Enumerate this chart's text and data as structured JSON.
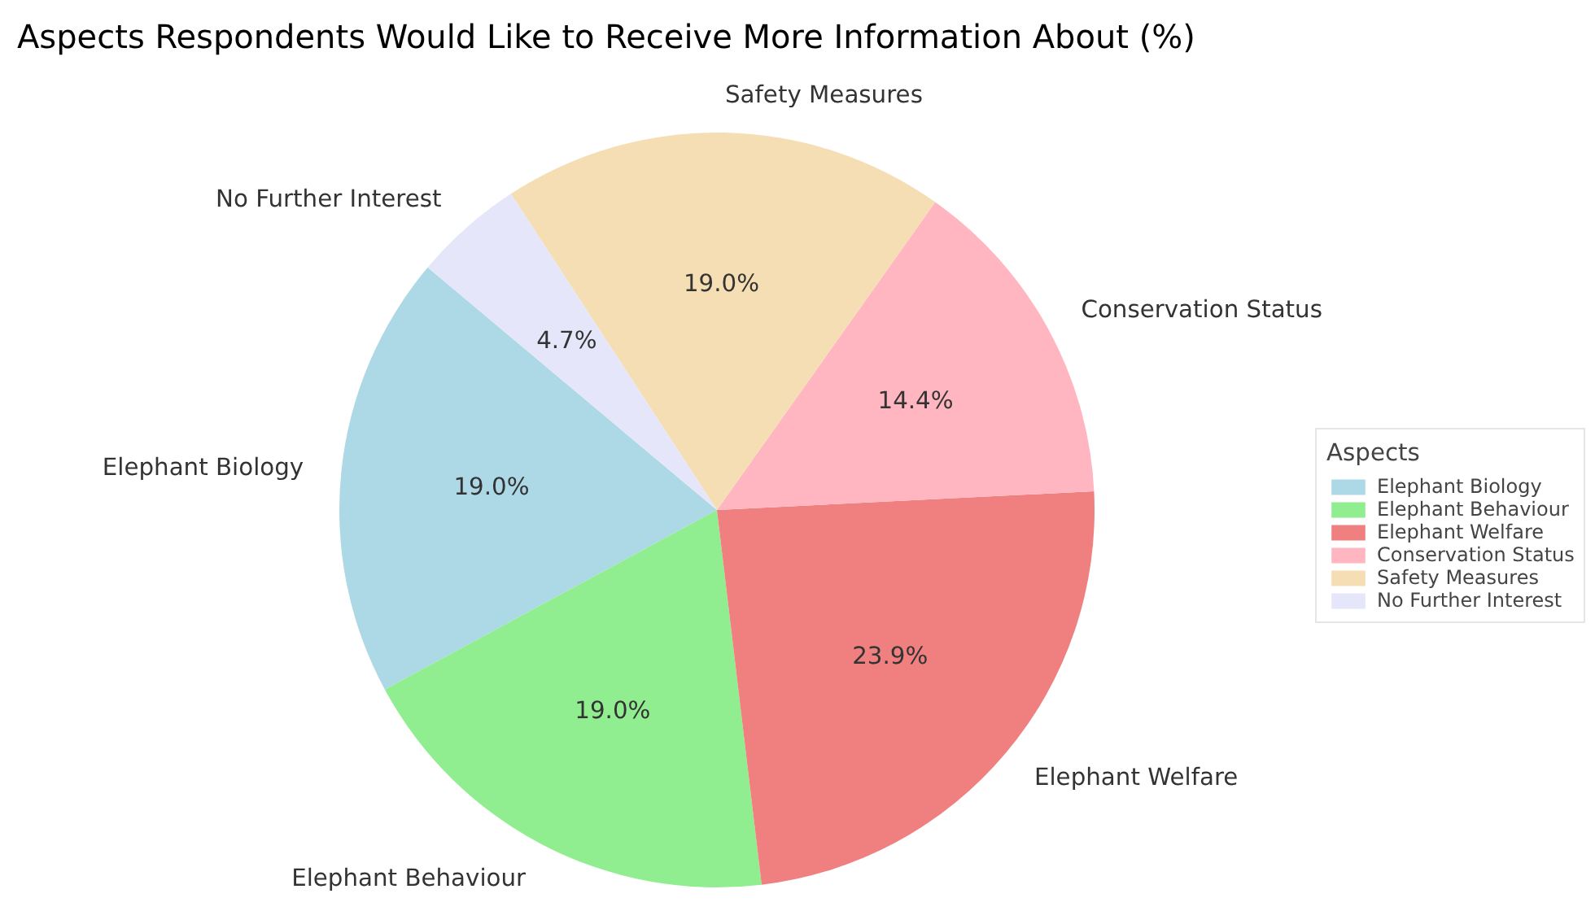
{
  "chart_data": {
    "type": "pie",
    "title": "Aspects Respondents Would Like to Receive More Information About (%)",
    "categories": [
      "Elephant Biology",
      "Elephant Behaviour",
      "Elephant Welfare",
      "Conservation Status",
      "Safety Measures",
      "No Further Interest"
    ],
    "values": [
      19.0,
      19.0,
      23.9,
      14.4,
      19.0,
      4.7
    ],
    "value_labels": [
      "19.0%",
      "19.0%",
      "23.9%",
      "14.4%",
      "19.0%",
      "4.7%"
    ],
    "colors": [
      "#add8e6",
      "#90ee90",
      "#f08080",
      "#ffb6c1",
      "#f5deb3",
      "#e6e6fa"
    ],
    "legend": "right",
    "legend_title": "Aspects"
  }
}
